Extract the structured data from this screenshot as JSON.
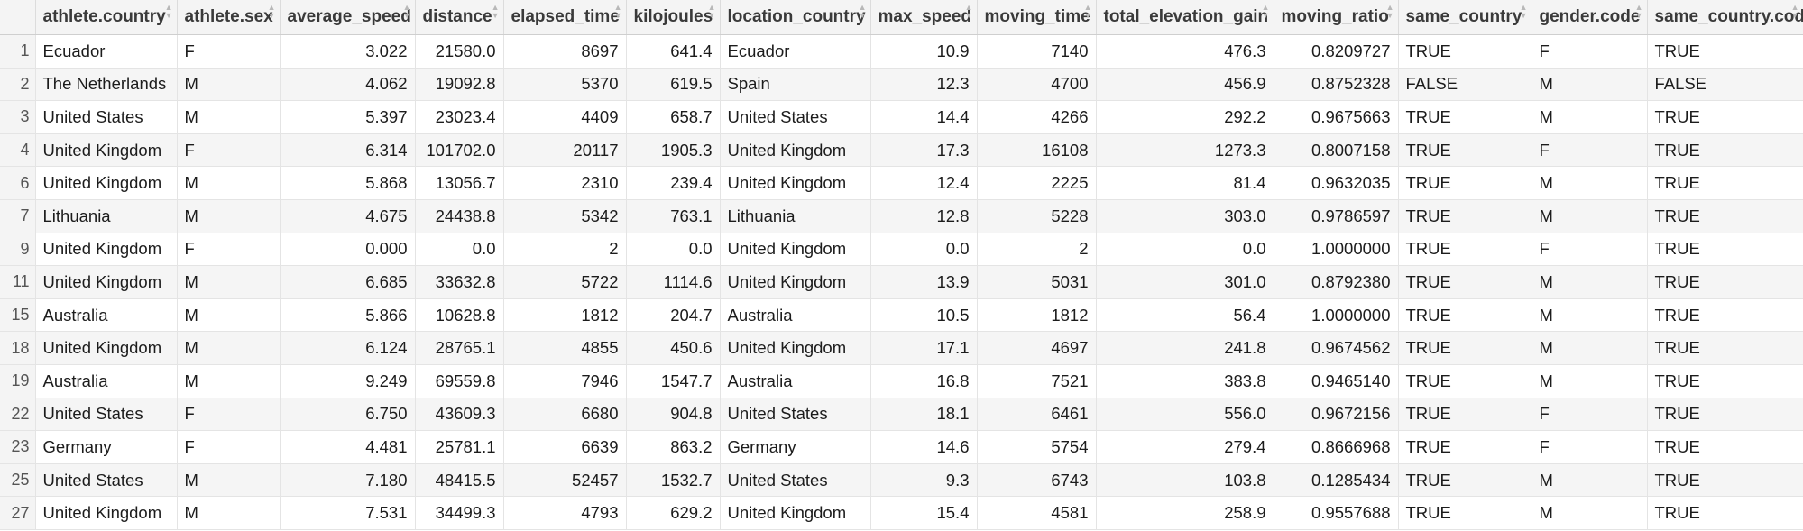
{
  "headers": [
    "athlete.country",
    "athlete.sex",
    "average_speed",
    "distance",
    "elapsed_time",
    "kilojoules",
    "location_country",
    "max_speed",
    "moving_time",
    "total_elevation_gain",
    "moving_ratio",
    "same_country",
    "gender.code",
    "same_country.code"
  ],
  "rows": [
    {
      "idx": "1",
      "cells": [
        "Ecuador",
        "F",
        "3.022",
        "21580.0",
        "8697",
        "641.4",
        "Ecuador",
        "10.9",
        "7140",
        "476.3",
        "0.8209727",
        "TRUE",
        "F",
        "TRUE"
      ]
    },
    {
      "idx": "2",
      "cells": [
        "The Netherlands",
        "M",
        "4.062",
        "19092.8",
        "5370",
        "619.5",
        "Spain",
        "12.3",
        "4700",
        "456.9",
        "0.8752328",
        "FALSE",
        "M",
        "FALSE"
      ]
    },
    {
      "idx": "3",
      "cells": [
        "United States",
        "M",
        "5.397",
        "23023.4",
        "4409",
        "658.7",
        "United States",
        "14.4",
        "4266",
        "292.2",
        "0.9675663",
        "TRUE",
        "M",
        "TRUE"
      ]
    },
    {
      "idx": "4",
      "cells": [
        "United Kingdom",
        "F",
        "6.314",
        "101702.0",
        "20117",
        "1905.3",
        "United Kingdom",
        "17.3",
        "16108",
        "1273.3",
        "0.8007158",
        "TRUE",
        "F",
        "TRUE"
      ]
    },
    {
      "idx": "6",
      "cells": [
        "United Kingdom",
        "M",
        "5.868",
        "13056.7",
        "2310",
        "239.4",
        "United Kingdom",
        "12.4",
        "2225",
        "81.4",
        "0.9632035",
        "TRUE",
        "M",
        "TRUE"
      ]
    },
    {
      "idx": "7",
      "cells": [
        "Lithuania",
        "M",
        "4.675",
        "24438.8",
        "5342",
        "763.1",
        "Lithuania",
        "12.8",
        "5228",
        "303.0",
        "0.9786597",
        "TRUE",
        "M",
        "TRUE"
      ]
    },
    {
      "idx": "9",
      "cells": [
        "United Kingdom",
        "F",
        "0.000",
        "0.0",
        "2",
        "0.0",
        "United Kingdom",
        "0.0",
        "2",
        "0.0",
        "1.0000000",
        "TRUE",
        "F",
        "TRUE"
      ]
    },
    {
      "idx": "11",
      "cells": [
        "United Kingdom",
        "M",
        "6.685",
        "33632.8",
        "5722",
        "1114.6",
        "United Kingdom",
        "13.9",
        "5031",
        "301.0",
        "0.8792380",
        "TRUE",
        "M",
        "TRUE"
      ]
    },
    {
      "idx": "15",
      "cells": [
        "Australia",
        "M",
        "5.866",
        "10628.8",
        "1812",
        "204.7",
        "Australia",
        "10.5",
        "1812",
        "56.4",
        "1.0000000",
        "TRUE",
        "M",
        "TRUE"
      ]
    },
    {
      "idx": "18",
      "cells": [
        "United Kingdom",
        "M",
        "6.124",
        "28765.1",
        "4855",
        "450.6",
        "United Kingdom",
        "17.1",
        "4697",
        "241.8",
        "0.9674562",
        "TRUE",
        "M",
        "TRUE"
      ]
    },
    {
      "idx": "19",
      "cells": [
        "Australia",
        "M",
        "9.249",
        "69559.8",
        "7946",
        "1547.7",
        "Australia",
        "16.8",
        "7521",
        "383.8",
        "0.9465140",
        "TRUE",
        "M",
        "TRUE"
      ]
    },
    {
      "idx": "22",
      "cells": [
        "United States",
        "F",
        "6.750",
        "43609.3",
        "6680",
        "904.8",
        "United States",
        "18.1",
        "6461",
        "556.0",
        "0.9672156",
        "TRUE",
        "F",
        "TRUE"
      ]
    },
    {
      "idx": "23",
      "cells": [
        "Germany",
        "F",
        "4.481",
        "25781.1",
        "6639",
        "863.2",
        "Germany",
        "14.6",
        "5754",
        "279.4",
        "0.8666968",
        "TRUE",
        "F",
        "TRUE"
      ]
    },
    {
      "idx": "25",
      "cells": [
        "United States",
        "M",
        "7.180",
        "48415.5",
        "52457",
        "1532.7",
        "United States",
        "9.3",
        "6743",
        "103.8",
        "0.1285434",
        "TRUE",
        "M",
        "TRUE"
      ]
    },
    {
      "idx": "27",
      "cells": [
        "United Kingdom",
        "M",
        "7.531",
        "34499.3",
        "4793",
        "629.2",
        "United Kingdom",
        "15.4",
        "4581",
        "258.9",
        "0.9557688",
        "TRUE",
        "M",
        "TRUE"
      ]
    }
  ],
  "numeric_columns": [
    2,
    3,
    4,
    5,
    7,
    8,
    9,
    10
  ],
  "icons": {
    "sort": "sort-arrows-icon"
  }
}
